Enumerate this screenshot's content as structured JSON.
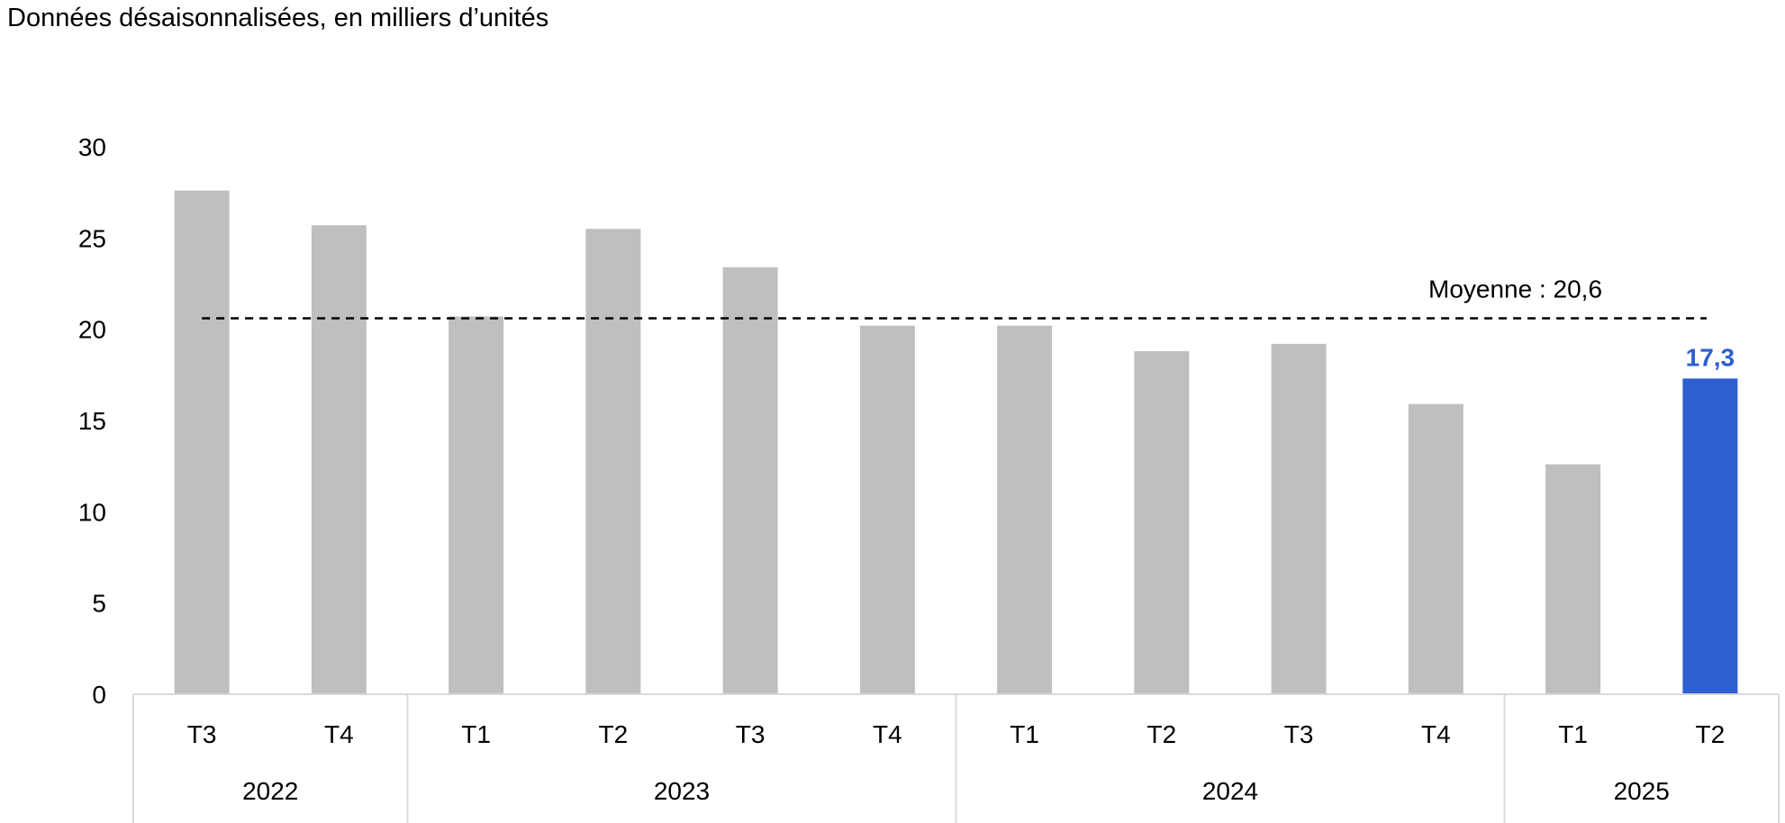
{
  "subtitle": "Données désaisonnalisées, en milliers d’unités",
  "chart_data": {
    "type": "bar",
    "title": "",
    "subtitle": "Données désaisonnalisées, en milliers d’unités",
    "xlabel": "",
    "ylabel": "",
    "ylim": [
      0,
      30
    ],
    "yticks": [
      0,
      5,
      10,
      15,
      20,
      25,
      30
    ],
    "grid": false,
    "categories": [
      "T3",
      "T4",
      "T1",
      "T2",
      "T3",
      "T4",
      "T1",
      "T2",
      "T3",
      "T4",
      "T1",
      "T2"
    ],
    "groups": [
      {
        "label": "2022",
        "count": 2
      },
      {
        "label": "2023",
        "count": 4
      },
      {
        "label": "2024",
        "count": 4
      },
      {
        "label": "2025",
        "count": 2
      }
    ],
    "values": [
      27.6,
      25.7,
      20.7,
      25.5,
      23.4,
      20.2,
      20.2,
      18.8,
      19.2,
      15.9,
      12.6,
      17.3
    ],
    "highlight_index": 11,
    "highlight_label": "17,3",
    "average": {
      "value": 20.6,
      "label": "Moyenne : 20,6"
    },
    "colors": {
      "bar": "#bfbfbf",
      "highlight": "#2e5fce",
      "axis": "#d9d9d9",
      "text": "#000000",
      "average_line": "#000000"
    }
  }
}
